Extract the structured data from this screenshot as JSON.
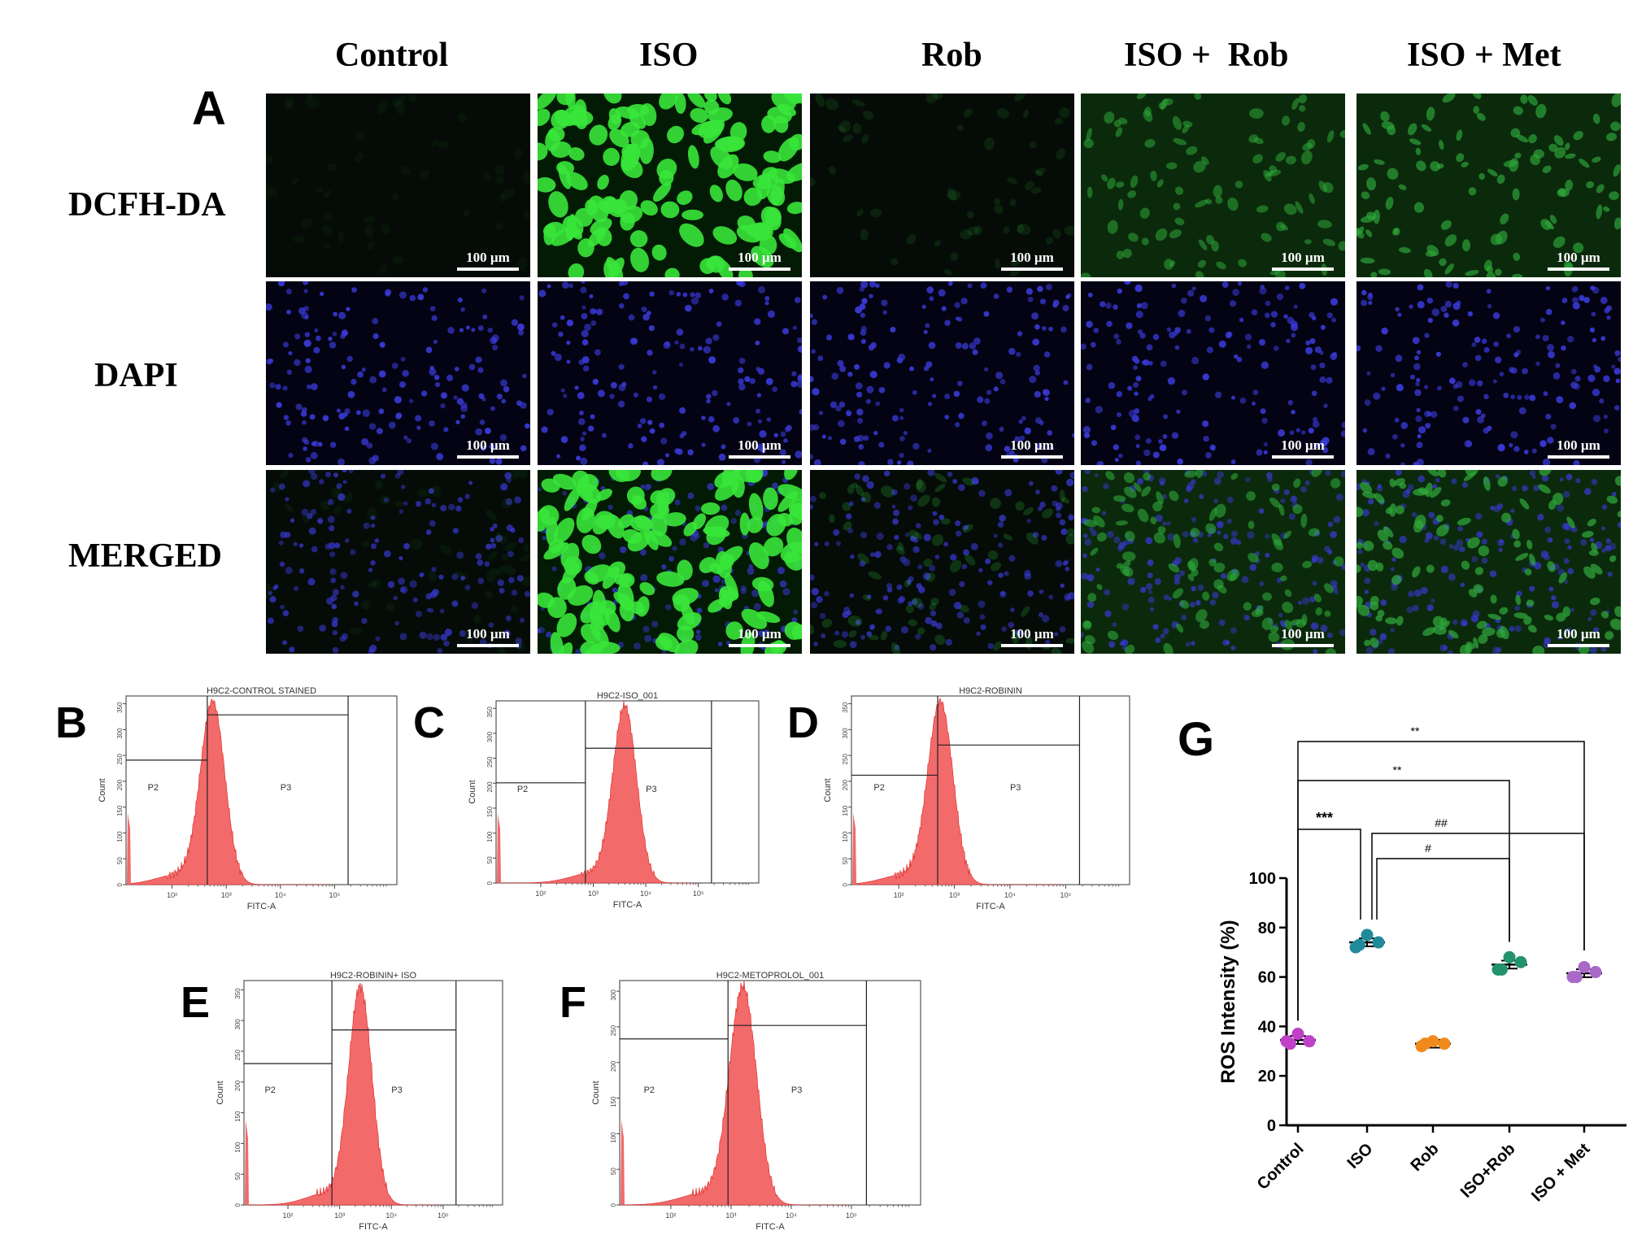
{
  "panels": {
    "A": "A",
    "B": "B",
    "C": "C",
    "D": "D",
    "E": "E",
    "F": "F",
    "G": "G"
  },
  "microscopy": {
    "columns": [
      "Control",
      "ISO",
      "Rob",
      "ISO +  Rob",
      "ISO + Met"
    ],
    "rows": [
      "DCFH-DA",
      "DAPI",
      "MERGED"
    ],
    "scale_bar": "100 µm"
  },
  "flow": [
    {
      "id": "B",
      "title": "H9C2-CONTROL STAINED",
      "gates": [
        "P2",
        "P3"
      ],
      "xlabel": "FITC-A",
      "ylabel": "Count",
      "xticks": [
        "10²",
        "10³",
        "10⁴",
        "10⁵"
      ],
      "yticks": [
        "0",
        "50",
        "100",
        "150",
        "200",
        "250",
        "300",
        "350"
      ]
    },
    {
      "id": "C",
      "title": "H9C2-ISO_001",
      "gates": [
        "P2",
        "P3"
      ],
      "xlabel": "FITC-A",
      "ylabel": "Count",
      "xticks": [
        "10²",
        "10³",
        "10⁴",
        "10⁵"
      ],
      "yticks": [
        "0",
        "50",
        "100",
        "150",
        "200",
        "250",
        "300",
        "350"
      ]
    },
    {
      "id": "D",
      "title": "H9C2-ROBININ",
      "gates": [
        "P2",
        "P3"
      ],
      "xlabel": "FITC-A",
      "ylabel": "Count",
      "xticks": [
        "10²",
        "10³",
        "10⁴",
        "10⁵"
      ],
      "yticks": [
        "0",
        "50",
        "100",
        "150",
        "200",
        "250",
        "300",
        "350"
      ]
    },
    {
      "id": "E",
      "title": "H9C2-ROBININ+ ISO",
      "gates": [
        "P2",
        "P3"
      ],
      "xlabel": "FITC-A",
      "ylabel": "Count",
      "xticks": [
        "10²",
        "10³",
        "10⁴",
        "10⁵"
      ],
      "yticks": [
        "0",
        "50",
        "100",
        "150",
        "200",
        "250",
        "300",
        "350"
      ]
    },
    {
      "id": "F",
      "title": "H9C2-METOPROLOL_001",
      "gates": [
        "P2",
        "P3"
      ],
      "xlabel": "FITC-A",
      "ylabel": "Count",
      "xticks": [
        "10²",
        "10³",
        "10⁴",
        "10⁵"
      ],
      "yticks": [
        "0",
        "50",
        "100",
        "150",
        "200",
        "250",
        "300"
      ]
    }
  ],
  "chart_data": {
    "type": "scatter",
    "ylabel": "ROS Intensity (%)",
    "ylim": [
      0,
      100
    ],
    "yticks": [
      0,
      20,
      40,
      60,
      80,
      100
    ],
    "categories": [
      "Control",
      "ISO",
      "Rob",
      "ISO+Rob",
      "ISO + Met"
    ],
    "colors": [
      "#c040c8",
      "#1f8a9a",
      "#f08a1c",
      "#23936b",
      "#a968c8"
    ],
    "points": [
      [
        34,
        37,
        34,
        33
      ],
      [
        72,
        77,
        74,
        73
      ],
      [
        32,
        34,
        33,
        33
      ],
      [
        63,
        68,
        66,
        63
      ],
      [
        60,
        64,
        62,
        60
      ]
    ],
    "means": [
      34.5,
      74,
      33,
      65,
      61.5
    ],
    "significance": [
      {
        "from": "Control",
        "to": "ISO + Met",
        "label": "**"
      },
      {
        "from": "Control",
        "to": "ISO+Rob",
        "label": "**"
      },
      {
        "from": "Control",
        "to": "ISO",
        "label": "***"
      },
      {
        "from": "ISO",
        "to": "ISO + Met",
        "label": "##"
      },
      {
        "from": "ISO",
        "to": "ISO+Rob",
        "label": "#"
      }
    ]
  }
}
